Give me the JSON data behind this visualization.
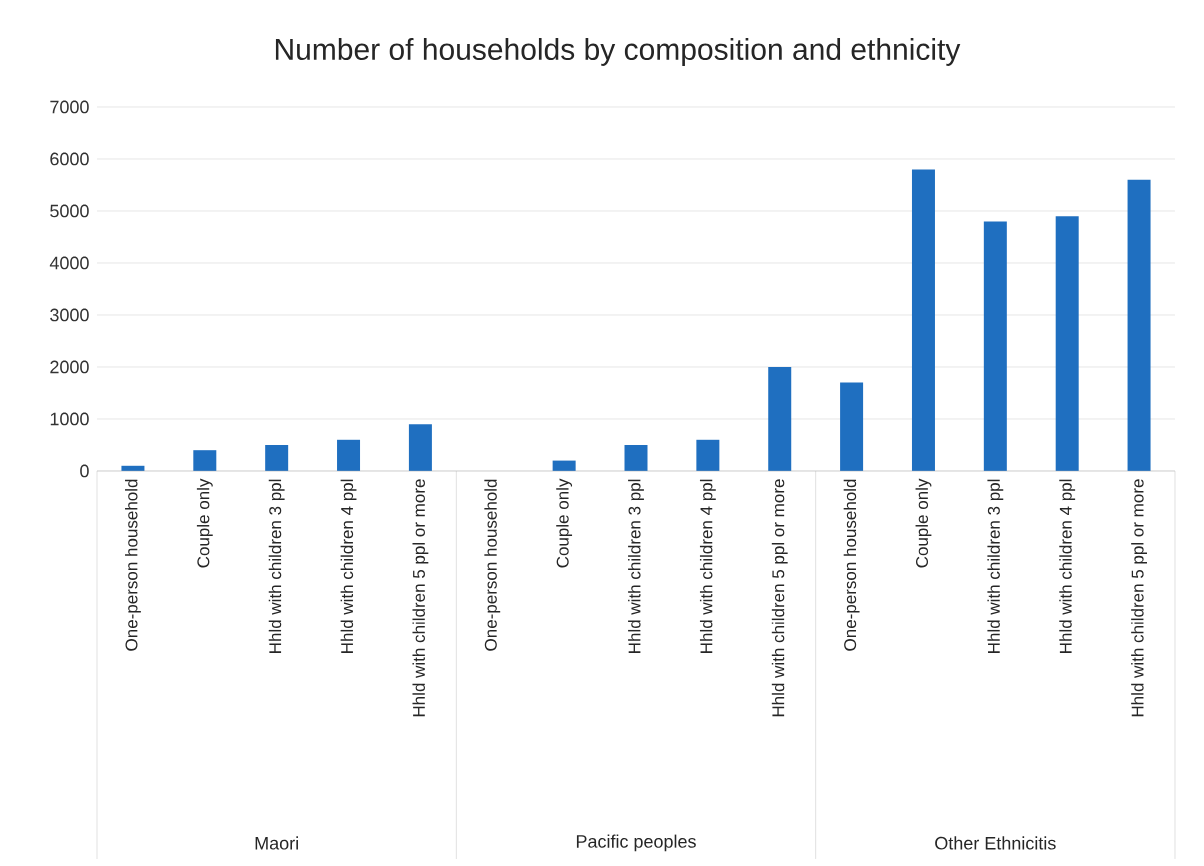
{
  "chart_data": {
    "type": "bar",
    "title": "Number of households by composition and ethnicity",
    "categories": [
      "One-person household",
      "Couple only",
      "Hhld with children 3 ppl",
      "Hhld with children 4 ppl",
      "Hhld with children 5 ppl or more",
      "One-person household",
      "Couple only",
      "Hhld with children 3 ppl",
      "Hhld with children 4 ppl",
      "Hhld with children 5 ppl or more",
      "One-person household",
      "Couple only",
      "Hhld with children 3 ppl",
      "Hhld with children 4 ppl",
      "Hhld with children 5 ppl or more"
    ],
    "values": [
      100,
      400,
      500,
      600,
      900,
      null,
      200,
      500,
      600,
      2000,
      1700,
      5800,
      4800,
      4900,
      5600
    ],
    "color": "#1f6fc0",
    "annotations": [
      "Maori",
      "Pacific peoples",
      "Other Ethnicitis"
    ],
    "ylim": [
      0,
      7000
    ],
    "yticks": [
      0,
      1000,
      2000,
      3000,
      4000,
      5000,
      6000,
      7000
    ],
    "grid": "y"
  }
}
